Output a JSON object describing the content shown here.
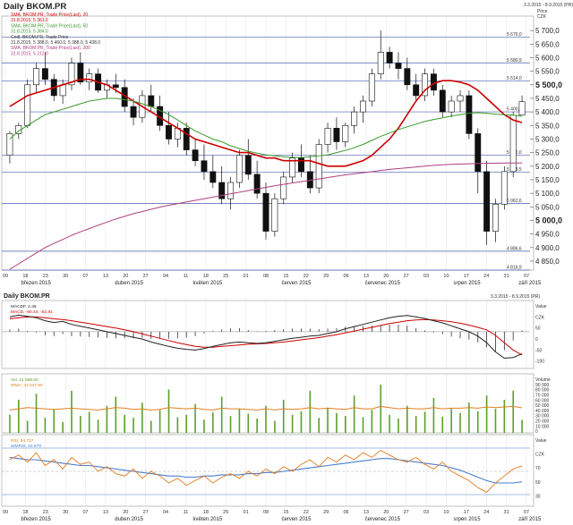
{
  "window": {
    "title": "Daily BKOM.PR",
    "period": "3.3.2015 - 8.9.2015 (PR)",
    "price_label": "Price",
    "currency": "CZK",
    "currency_lower": "CZK"
  },
  "main_legend": [
    {
      "text": "SMA, BKOM.PR, Trade Price(Last), 20",
      "color": "#cc0000"
    },
    {
      "text": "31.8.2015, 5 361.0",
      "color": "#cc0000"
    },
    {
      "text": "SMA, BKOM.PR, Trade Price(Last), 50",
      "color": "#3a9a2a"
    },
    {
      "text": "31.8.2015, 5 384.0",
      "color": "#3a9a2a"
    },
    {
      "text": "Cndl, BKOM.PR, Trade Price",
      "color": "#333333"
    },
    {
      "text": "31.8.2015, 5 388.0, 5 460.0, 5 388.0, 5 438.0",
      "color": "#333333"
    },
    {
      "text": "SMA, BKOM.PR, Trade Price(Last), 200",
      "color": "#b04080"
    },
    {
      "text": "31.8.2015, 5 212.0",
      "color": "#b04080"
    }
  ],
  "macd_legend": [
    {
      "text": "MACDF, 2.46",
      "color": "#222222"
    },
    {
      "text": "MACD, -60.44, -62.91",
      "color": "#cc0000"
    }
  ],
  "vol_legend": [
    {
      "text": "Vol, 21 588.00",
      "color": "#5aa02a"
    },
    {
      "text": "WMA, 41 547.90",
      "color": "#e08020"
    }
  ],
  "rsi_legend": [
    {
      "text": "RSI, 54.727",
      "color": "#e07a20"
    },
    {
      "text": "WMRSI, 40.979",
      "color": "#4a7fd0"
    }
  ],
  "x_axis": {
    "day_ticks": [
      "09",
      "18",
      "23",
      "30",
      "07",
      "13",
      "20",
      "27",
      "04",
      "11",
      "18",
      "25",
      "01",
      "08",
      "15",
      "22",
      "29",
      "06",
      "13",
      "20",
      "27",
      "03",
      "10",
      "17",
      "24",
      "31",
      "07"
    ],
    "bottom_day_ticks": [
      "09",
      "18",
      "23",
      "30",
      "07",
      "13",
      "20",
      "27",
      "04",
      "11",
      "18",
      "25",
      "01",
      "08",
      "15",
      "22",
      "29",
      "06",
      "13",
      "20",
      "27",
      "03",
      "10",
      "17",
      "24",
      "31",
      "07"
    ],
    "months": [
      "březen 2015",
      "duben 2015",
      "květen 2015",
      "červen 2015",
      "červenec 2015",
      "srpen 2015",
      "září 2015"
    ]
  },
  "price_axis": {
    "ticks": [
      "5 700,0",
      "5 650,0",
      "5 600,0",
      "5 550,0",
      "5 500,0",
      "5 450,0",
      "5 400,0",
      "5 350,0",
      "5 300,0",
      "5 250,0",
      "5 200,0",
      "5 150,0",
      "5 100,0",
      "5 050,0",
      "5 000,0",
      "4 950,0",
      "4 900,0",
      "4 850,0"
    ],
    "levels": [
      "5 676,0",
      "5 580,9",
      "5 514,0",
      "5 400,2",
      "5 240,0",
      "5 178,5",
      "5 062,6",
      "4 886,6",
      "4 816,9"
    ]
  },
  "macd_axis": {
    "labels": [
      "Value",
      "CZK",
      "50",
      "0",
      "-50",
      "-100"
    ]
  },
  "vol_axis": {
    "labels": [
      "Volume",
      "90 000",
      "80 000",
      "70 000",
      "60 000",
      "50 000",
      "40 000",
      "30 000",
      "20 000",
      "10 000",
      "0"
    ]
  },
  "rsi_axis": {
    "labels": [
      "Value",
      "CZK",
      "70",
      "50",
      "30"
    ]
  },
  "chart_data": [
    {
      "type": "candlestick",
      "title": "Daily BKOM.PR",
      "ylabel": "Price CZK",
      "ylim": [
        4816.9,
        5740
      ],
      "x_dates": [
        "Mar 2015",
        "Apr 2015",
        "May 2015",
        "Jun 2015",
        "Jul 2015",
        "Aug 2015",
        "Sep 2015"
      ],
      "overlays": [
        {
          "name": "SMA 20",
          "color": "#cc0000",
          "values": [
            5420,
            5440,
            5460,
            5470,
            5480,
            5490,
            5500,
            5510,
            5520,
            5520,
            5510,
            5500,
            5480,
            5460,
            5440,
            5420,
            5400,
            5380,
            5360,
            5340,
            5320,
            5300,
            5290,
            5280,
            5270,
            5260,
            5250,
            5250,
            5240,
            5230,
            5230,
            5220,
            5220,
            5220,
            5220,
            5210,
            5200,
            5200,
            5200,
            5210,
            5220,
            5240,
            5270,
            5300,
            5340,
            5390,
            5440,
            5480,
            5505,
            5515,
            5515,
            5510,
            5500,
            5480,
            5450,
            5420,
            5390,
            5370,
            5361
          ]
        },
        {
          "name": "SMA 50",
          "color": "#3a9a2a",
          "values": [
            5300,
            5330,
            5350,
            5370,
            5390,
            5400,
            5410,
            5420,
            5430,
            5440,
            5445,
            5450,
            5450,
            5445,
            5440,
            5430,
            5420,
            5405,
            5390,
            5370,
            5350,
            5330,
            5315,
            5300,
            5290,
            5275,
            5265,
            5255,
            5248,
            5242,
            5238,
            5235,
            5232,
            5232,
            5235,
            5238,
            5242,
            5250,
            5258,
            5268,
            5280,
            5295,
            5310,
            5322,
            5335,
            5345,
            5355,
            5365,
            5372,
            5378,
            5385,
            5390,
            5395,
            5397,
            5395,
            5392,
            5390,
            5388,
            5384
          ]
        },
        {
          "name": "SMA 200",
          "color": "#b04080",
          "values": [
            4820,
            4840,
            4860,
            4880,
            4900,
            4915,
            4930,
            4945,
            4958,
            4970,
            4982,
            4994,
            5005,
            5015,
            5025,
            5033,
            5041,
            5049,
            5056,
            5062,
            5068,
            5074,
            5080,
            5086,
            5092,
            5098,
            5104,
            5110,
            5116,
            5122,
            5128,
            5133,
            5138,
            5143,
            5148,
            5153,
            5158,
            5163,
            5168,
            5172,
            5176,
            5180,
            5184,
            5188,
            5191,
            5194,
            5197,
            5200,
            5203,
            5205,
            5207,
            5208,
            5209,
            5210,
            5211,
            5211,
            5212,
            5212,
            5212
          ]
        }
      ],
      "candles": [
        [
          5240,
          5330,
          5210,
          5320
        ],
        [
          5320,
          5360,
          5300,
          5350
        ],
        [
          5350,
          5520,
          5340,
          5500
        ],
        [
          5500,
          5580,
          5470,
          5560
        ],
        [
          5560,
          5620,
          5500,
          5520
        ],
        [
          5520,
          5540,
          5440,
          5460
        ],
        [
          5460,
          5520,
          5430,
          5500
        ],
        [
          5500,
          5600,
          5480,
          5580
        ],
        [
          5580,
          5620,
          5500,
          5510
        ],
        [
          5510,
          5560,
          5480,
          5540
        ],
        [
          5540,
          5560,
          5470,
          5480
        ],
        [
          5480,
          5520,
          5450,
          5500
        ],
        [
          5500,
          5540,
          5470,
          5490
        ],
        [
          5490,
          5520,
          5400,
          5420
        ],
        [
          5420,
          5450,
          5350,
          5380
        ],
        [
          5380,
          5480,
          5360,
          5460
        ],
        [
          5460,
          5500,
          5400,
          5420
        ],
        [
          5420,
          5460,
          5330,
          5350
        ],
        [
          5350,
          5400,
          5280,
          5300
        ],
        [
          5300,
          5360,
          5270,
          5340
        ],
        [
          5340,
          5360,
          5240,
          5260
        ],
        [
          5260,
          5300,
          5200,
          5220
        ],
        [
          5220,
          5280,
          5150,
          5180
        ],
        [
          5180,
          5240,
          5120,
          5140
        ],
        [
          5140,
          5200,
          5060,
          5080
        ],
        [
          5080,
          5160,
          5040,
          5140
        ],
        [
          5140,
          5260,
          5120,
          5240
        ],
        [
          5240,
          5300,
          5150,
          5170
        ],
        [
          5170,
          5220,
          5080,
          5100
        ],
        [
          5100,
          5140,
          4930,
          4960
        ],
        [
          4960,
          5100,
          4940,
          5080
        ],
        [
          5080,
          5180,
          5060,
          5160
        ],
        [
          5160,
          5250,
          5140,
          5230
        ],
        [
          5230,
          5280,
          5160,
          5180
        ],
        [
          5180,
          5240,
          5100,
          5120
        ],
        [
          5120,
          5300,
          5100,
          5280
        ],
        [
          5280,
          5360,
          5250,
          5340
        ],
        [
          5340,
          5380,
          5260,
          5290
        ],
        [
          5290,
          5360,
          5270,
          5350
        ],
        [
          5350,
          5420,
          5320,
          5400
        ],
        [
          5400,
          5460,
          5360,
          5440
        ],
        [
          5440,
          5560,
          5420,
          5540
        ],
        [
          5540,
          5700,
          5520,
          5620
        ],
        [
          5620,
          5640,
          5560,
          5580
        ],
        [
          5580,
          5620,
          5520,
          5560
        ],
        [
          5560,
          5600,
          5480,
          5500
        ],
        [
          5500,
          5540,
          5440,
          5460
        ],
        [
          5460,
          5560,
          5440,
          5540
        ],
        [
          5540,
          5560,
          5460,
          5480
        ],
        [
          5480,
          5500,
          5380,
          5400
        ],
        [
          5400,
          5460,
          5380,
          5440
        ],
        [
          5440,
          5480,
          5400,
          5460
        ],
        [
          5460,
          5480,
          5300,
          5320
        ],
        [
          5320,
          5340,
          5100,
          5180
        ],
        [
          5180,
          5220,
          4910,
          4960
        ],
        [
          4960,
          5080,
          4920,
          5060
        ],
        [
          5060,
          5200,
          5040,
          5180
        ],
        [
          5180,
          5400,
          5160,
          5388
        ],
        [
          5388,
          5460,
          5388,
          5438
        ]
      ]
    },
    {
      "type": "line",
      "title": "MACD",
      "ylim": [
        -100,
        80
      ],
      "series": [
        {
          "name": "MACDF",
          "color": "#222222",
          "values": [
            40,
            45,
            42,
            38,
            30,
            25,
            28,
            20,
            15,
            10,
            5,
            0,
            -5,
            -10,
            -15,
            -20,
            -28,
            -34,
            -40,
            -45,
            -48,
            -50,
            -46,
            -40,
            -35,
            -30,
            -28,
            -30,
            -32,
            -30,
            -26,
            -22,
            -18,
            -15,
            -12,
            -10,
            -5,
            0,
            8,
            14,
            20,
            26,
            32,
            38,
            42,
            44,
            40,
            36,
            30,
            24,
            16,
            8,
            0,
            -12,
            -30,
            -55,
            -72,
            -70,
            -60
          ]
        },
        {
          "name": "MACD",
          "color": "#cc0000",
          "values": [
            35,
            38,
            40,
            40,
            38,
            35,
            33,
            30,
            26,
            22,
            18,
            14,
            10,
            5,
            0,
            -6,
            -12,
            -18,
            -24,
            -30,
            -35,
            -40,
            -42,
            -42,
            -40,
            -38,
            -36,
            -34,
            -33,
            -32,
            -30,
            -28,
            -25,
            -22,
            -19,
            -16,
            -12,
            -8,
            -3,
            2,
            7,
            12,
            17,
            22,
            26,
            30,
            32,
            33,
            32,
            30,
            27,
            23,
            18,
            12,
            5,
            -10,
            -30,
            -50,
            -63
          ]
        }
      ]
    },
    {
      "type": "bar",
      "title": "Volume",
      "ylim": [
        0,
        95000
      ],
      "series": [
        {
          "name": "Vol",
          "color": "#5aa02a",
          "values": [
            30000,
            55000,
            20000,
            65000,
            25000,
            40000,
            18000,
            70000,
            28000,
            35000,
            22000,
            45000,
            60000,
            30000,
            25000,
            50000,
            20000,
            38000,
            72000,
            26000,
            30000,
            48000,
            22000,
            34000,
            60000,
            28000,
            40000,
            32000,
            24000,
            45000,
            20000,
            55000,
            30000,
            36000,
            70000,
            25000,
            42000,
            33000,
            28000,
            62000,
            26000,
            38000,
            80000,
            30000,
            24000,
            45000,
            28000,
            35000,
            58000,
            27000,
            40000,
            33000,
            50000,
            36000,
            62000,
            40000,
            55000,
            70000,
            21588
          ]
        },
        {
          "name": "WMA",
          "color": "#e08020",
          "values": [
            38000,
            40000,
            42000,
            41000,
            40000,
            39000,
            40000,
            41000,
            40000,
            39000,
            38000,
            40000,
            42000,
            41000,
            39000,
            40000,
            38000,
            39000,
            42000,
            41000,
            40000,
            41000,
            39000,
            38000,
            41000,
            40000,
            40000,
            39000,
            38000,
            40000,
            38000,
            40000,
            39000,
            40000,
            42000,
            40000,
            41000,
            40000,
            39000,
            42000,
            40000,
            40000,
            44000,
            42000,
            40000,
            41000,
            40000,
            40000,
            42000,
            40000,
            41000,
            41000,
            42000,
            41000,
            43000,
            42000,
            43000,
            44000,
            41548
          ]
        }
      ]
    },
    {
      "type": "line",
      "title": "RSI",
      "ylim": [
        20,
        80
      ],
      "series": [
        {
          "name": "RSI",
          "color": "#e07a20",
          "values": [
            60,
            64,
            58,
            66,
            55,
            60,
            52,
            62,
            56,
            58,
            50,
            54,
            48,
            46,
            52,
            44,
            50,
            46,
            40,
            44,
            38,
            42,
            46,
            40,
            45,
            48,
            44,
            50,
            46,
            52,
            48,
            54,
            50,
            56,
            60,
            54,
            62,
            58,
            64,
            60,
            66,
            62,
            68,
            64,
            60,
            58,
            62,
            56,
            52,
            58,
            50,
            46,
            42,
            36,
            32,
            40,
            46,
            52,
            54.727
          ]
        },
        {
          "name": "WMRSI",
          "color": "#4a7fd0",
          "values": [
            62,
            61,
            60,
            60,
            59,
            58,
            57,
            56,
            55,
            55,
            54,
            53,
            52,
            51,
            50,
            49,
            48,
            47,
            46,
            46,
            45,
            45,
            46,
            46,
            47,
            47,
            47,
            48,
            48,
            49,
            49,
            50,
            51,
            52,
            53,
            54,
            55,
            56,
            57,
            58,
            59,
            60,
            61,
            61,
            60,
            59,
            58,
            57,
            56,
            55,
            53,
            51,
            48,
            45,
            42,
            40,
            40,
            40,
            40.979
          ]
        }
      ]
    }
  ]
}
